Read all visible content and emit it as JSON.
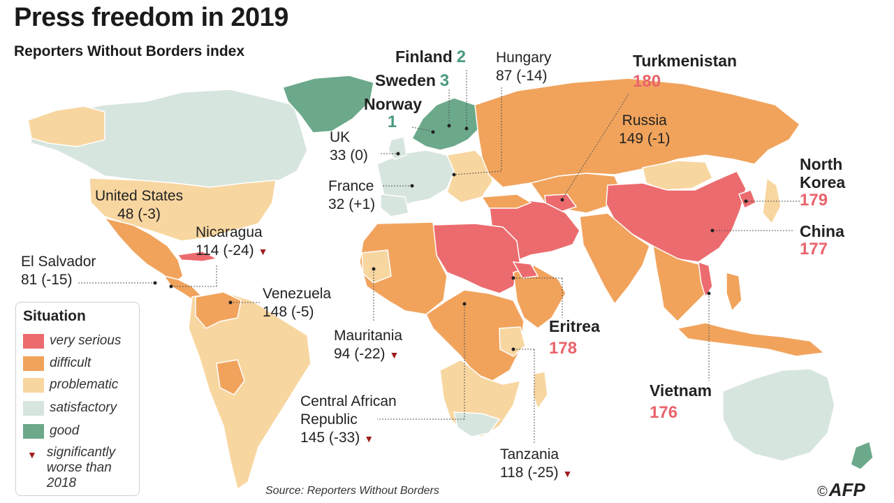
{
  "title": "Press freedom in 2019",
  "subtitle": "Reporters Without Borders index",
  "colors": {
    "very_serious": "#ec6b6e",
    "difficult": "#f1a35c",
    "problematic": "#f8d6a0",
    "satisfactory": "#d6e5dd",
    "good": "#6ba98a",
    "border": "#ffffff",
    "rank_red": "#e8636b",
    "rank_green": "#4a9a7e"
  },
  "countries": [
    {
      "id": "finland",
      "name": "Finland",
      "rank": "2",
      "change": "",
      "style": "good-big"
    },
    {
      "id": "sweden",
      "name": "Sweden",
      "rank": "3",
      "change": "",
      "style": "good-big"
    },
    {
      "id": "norway",
      "name": "Norway",
      "rank": "1",
      "change": "",
      "style": "good-big"
    },
    {
      "id": "hungary",
      "name": "Hungary",
      "rank": "87",
      "change": "(-14)",
      "style": "normal"
    },
    {
      "id": "turkmenistan",
      "name": "Turkmenistan",
      "rank": "180",
      "change": "",
      "style": "red-big"
    },
    {
      "id": "russia",
      "name": "Russia",
      "rank": "149",
      "change": "(-1)",
      "style": "normal"
    },
    {
      "id": "uk",
      "name": "UK",
      "rank": "33",
      "change": "(0)",
      "style": "normal"
    },
    {
      "id": "france",
      "name": "France",
      "rank": "32",
      "change": "(+1)",
      "style": "normal"
    },
    {
      "id": "united-states",
      "name": "United States",
      "rank": "48",
      "change": "(-3)",
      "style": "normal"
    },
    {
      "id": "nicaragua",
      "name": "Nicaragua",
      "rank": "114",
      "change": "(-24)",
      "style": "normal",
      "worse": true
    },
    {
      "id": "el-salvador",
      "name": "El Salvador",
      "rank": "81",
      "change": "(-15)",
      "style": "normal"
    },
    {
      "id": "venezuela",
      "name": "Venezuela",
      "rank": "148",
      "change": "(-5)",
      "style": "normal"
    },
    {
      "id": "mauritania",
      "name": "Mauritania",
      "rank": "94",
      "change": "(-22)",
      "style": "normal",
      "worse": true
    },
    {
      "id": "central-african-republic",
      "name": "Central African",
      "name2": "Republic",
      "rank": "145",
      "change": "(-33)",
      "style": "normal",
      "worse": true
    },
    {
      "id": "tanzania",
      "name": "Tanzania",
      "rank": "118",
      "change": "(-25)",
      "style": "normal",
      "worse": true
    },
    {
      "id": "eritrea",
      "name": "Eritrea",
      "rank": "178",
      "change": "",
      "style": "red-big"
    },
    {
      "id": "vietnam",
      "name": "Vietnam",
      "rank": "176",
      "change": "",
      "style": "red-big"
    },
    {
      "id": "china",
      "name": "China",
      "rank": "177",
      "change": "",
      "style": "red-big"
    },
    {
      "id": "north-korea",
      "name": "North",
      "name2": "Korea",
      "rank": "179",
      "change": "",
      "style": "red-big"
    }
  ],
  "legend": {
    "title": "Situation",
    "items": [
      {
        "label": "very serious",
        "color": "#ec6b6e"
      },
      {
        "label": "difficult",
        "color": "#f1a35c"
      },
      {
        "label": "problematic",
        "color": "#f8d6a0"
      },
      {
        "label": "satisfactory",
        "color": "#d6e5dd"
      },
      {
        "label": "good",
        "color": "#6ba98a"
      }
    ],
    "note": "significantly\nworse than\n2018"
  },
  "source": "Source: Reporters Without Borders",
  "credit": "AFP",
  "credit_symbol": "©"
}
